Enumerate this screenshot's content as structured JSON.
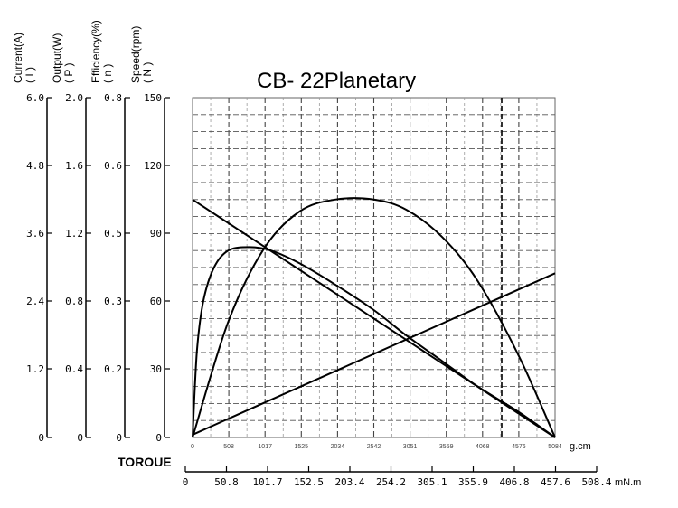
{
  "chart_data": {
    "type": "line",
    "title": "CB- 22Planetary",
    "torque_label": "TOROUE",
    "left_axes": [
      {
        "id": "current",
        "title": "Current(A)",
        "symbol": "( I )",
        "ticks": [
          "6.0",
          "4.8",
          "3.6",
          "2.4",
          "1.2",
          "0"
        ],
        "range": [
          0,
          6.0
        ]
      },
      {
        "id": "output",
        "title": "Output(W)",
        "symbol": "( P )",
        "ticks": [
          "2.0",
          "1.6",
          "1.2",
          "0.8",
          "0.4",
          "0"
        ],
        "range": [
          0,
          2.0
        ]
      },
      {
        "id": "efficiency",
        "title": "Efficiency(%)",
        "symbol": "( n )",
        "ticks": [
          "0.8",
          "0.6",
          "0.5",
          "0.3",
          "0.2",
          "0"
        ],
        "range": [
          0,
          0.8
        ]
      },
      {
        "id": "speed",
        "title": "Speed(rpm)",
        "symbol": "( N )",
        "ticks": [
          "150",
          "120",
          "90",
          "60",
          "30",
          "0"
        ],
        "range": [
          0,
          150
        ]
      }
    ],
    "x_gcm": {
      "unit": "g.cm",
      "ticks": [
        "0",
        "508",
        "1017",
        "1525",
        "2034",
        "2542",
        "3051",
        "3559",
        "4068",
        "4576",
        "5084"
      ],
      "range": [
        0,
        5084
      ]
    },
    "x_mnm": {
      "unit": "mN.m",
      "ticks": [
        "0",
        "50.8",
        "101.7",
        "152.5",
        "203.4",
        "254.2",
        "305.1",
        "355.9",
        "406.8",
        "457.6",
        "508.4"
      ],
      "range": [
        0,
        508.4
      ]
    },
    "series": [
      {
        "id": "speed",
        "axis": "speed",
        "x": [
          0,
          5084
        ],
        "y": [
          105,
          0
        ]
      },
      {
        "id": "current",
        "axis": "current",
        "x": [
          0,
          5084
        ],
        "y": [
          0.05,
          2.9
        ]
      },
      {
        "id": "output",
        "axis": "output",
        "x": [
          0,
          500,
          1000,
          1500,
          2000,
          2542,
          3000,
          3500,
          4000,
          4576,
          5084
        ],
        "y": [
          0,
          0.68,
          1.11,
          1.33,
          1.4,
          1.4,
          1.34,
          1.18,
          0.92,
          0.48,
          0
        ]
      },
      {
        "id": "efficiency",
        "axis": "efficiency",
        "x": [
          0,
          60,
          150,
          300,
          500,
          800,
          1100,
          1500,
          2000,
          2542,
          3000,
          3500,
          4000,
          4576,
          5084
        ],
        "y": [
          0,
          0.2,
          0.32,
          0.4,
          0.44,
          0.448,
          0.44,
          0.41,
          0.36,
          0.3,
          0.24,
          0.18,
          0.12,
          0.06,
          0
        ]
      }
    ],
    "grid": true
  }
}
